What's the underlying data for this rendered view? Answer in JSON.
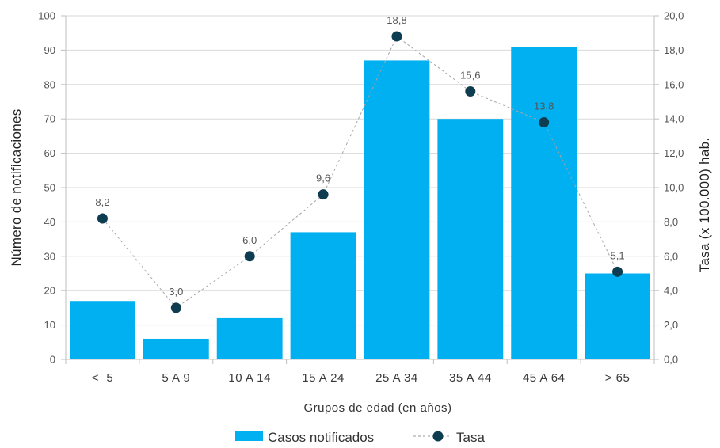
{
  "chart_data": {
    "type": "bar+line",
    "categories": [
      "<  5",
      "5 A 9",
      "10 A 14",
      "15 A 24",
      "25 A 34",
      "35 A 44",
      "45 A 64",
      "> 65"
    ],
    "series": [
      {
        "name": "Casos notificados",
        "type": "bar",
        "axis": "left",
        "color": "#00b0f0",
        "values": [
          17,
          6,
          12,
          37,
          87,
          70,
          91,
          25
        ]
      },
      {
        "name": "Tasa",
        "type": "line",
        "axis": "right",
        "color": "#0e3d52",
        "values": [
          8.2,
          3.0,
          6.0,
          9.6,
          18.8,
          15.6,
          13.8,
          5.1
        ],
        "labels": [
          "8,2",
          "3,0",
          "6,0",
          "9,6",
          "18,8",
          "15,6",
          "13,8",
          "5,1"
        ]
      }
    ],
    "xlabel": "Grupos de edad (en años)",
    "ylabel_left": "Número de notificaciones",
    "ylabel_right": "Tasa (x 100.000) hab.",
    "ylim_left": [
      0,
      100
    ],
    "ylim_right": [
      0,
      20
    ],
    "yticks_left": [
      "0",
      "10",
      "20",
      "30",
      "40",
      "50",
      "60",
      "70",
      "80",
      "90",
      "100"
    ],
    "yticks_right": [
      "0,0",
      "2,0",
      "4,0",
      "6,0",
      "8,0",
      "10,0",
      "12,0",
      "14,0",
      "16,0",
      "18,0",
      "20,0"
    ],
    "grid": true,
    "legend_position": "bottom"
  }
}
